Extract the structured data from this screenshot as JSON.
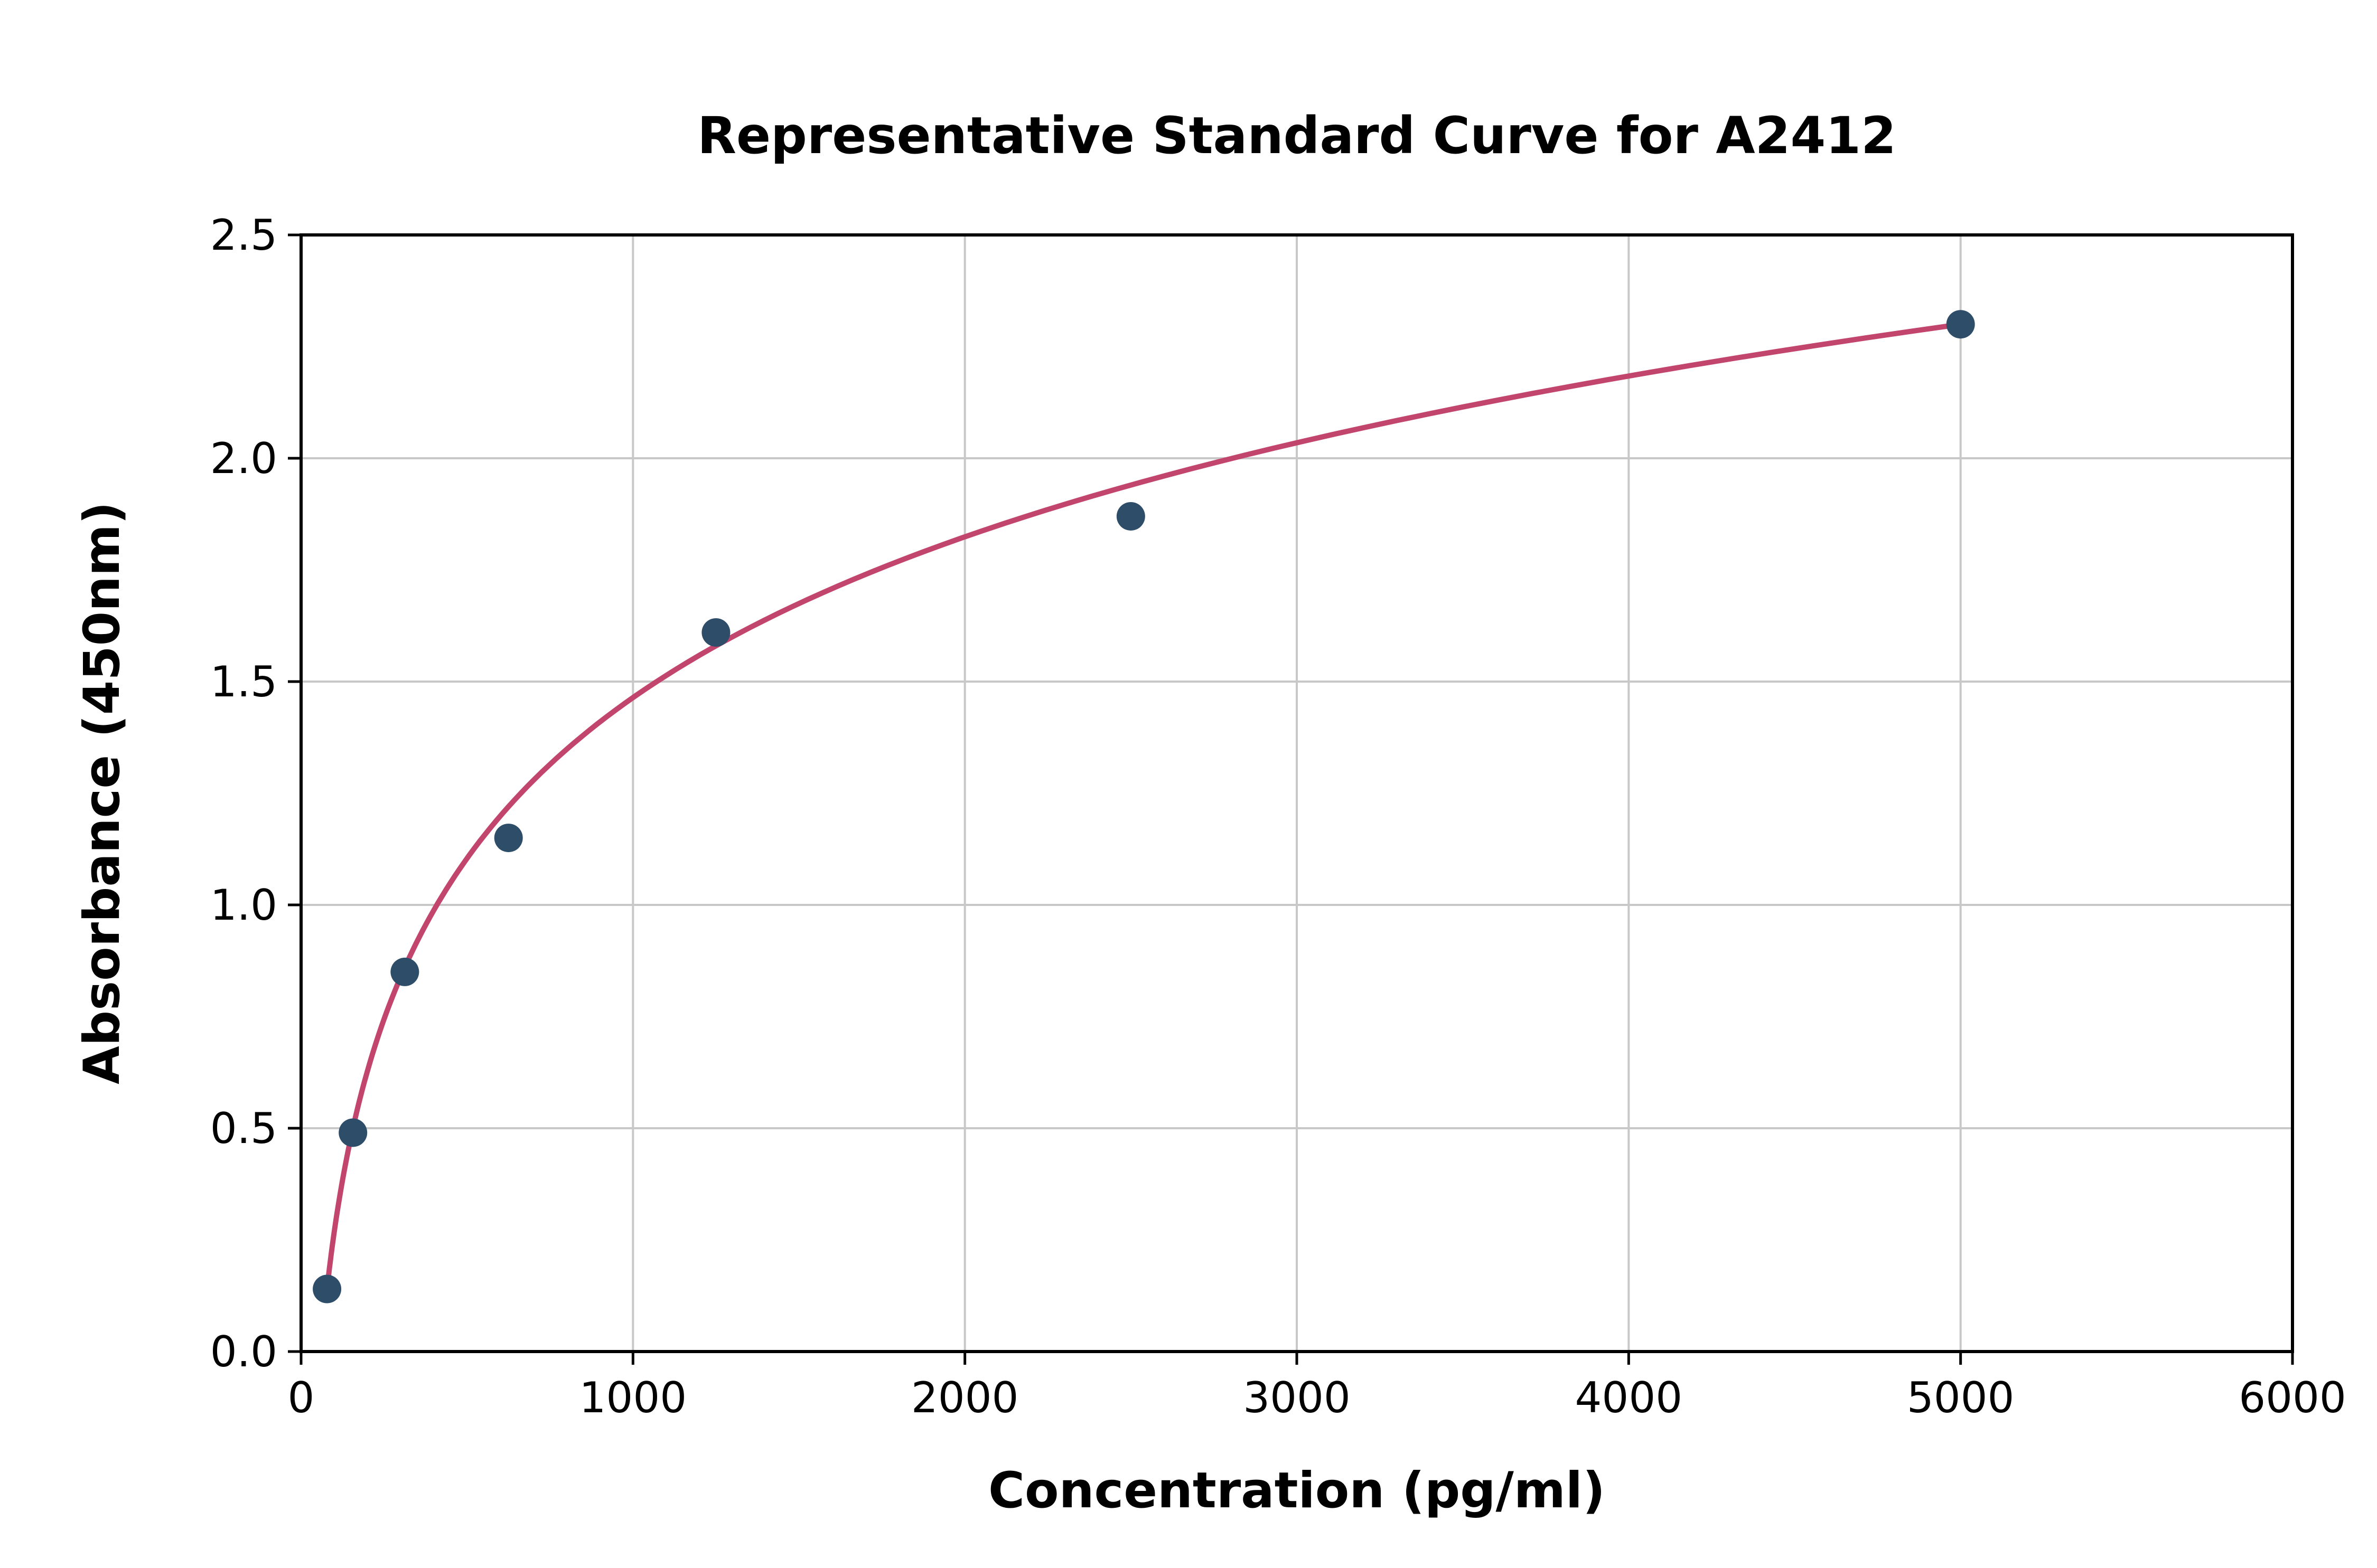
{
  "page": {
    "background": "#ffffff"
  },
  "chart_data": {
    "type": "scatter",
    "title": "Representative Standard Curve for A2412",
    "xlabel": "Concentration (pg/ml)",
    "ylabel": "Absorbance (450nm)",
    "xlim": [
      0,
      6000
    ],
    "ylim": [
      0,
      2.5
    ],
    "grid": true,
    "legend": "none",
    "x_tick_values": [
      0,
      1000,
      2000,
      3000,
      4000,
      5000,
      6000
    ],
    "x_tick_labels": [
      "0",
      "1000",
      "2000",
      "3000",
      "4000",
      "5000",
      "6000"
    ],
    "y_tick_values": [
      0.0,
      0.5,
      1.0,
      1.5,
      2.0,
      2.5
    ],
    "y_tick_labels": [
      "0.0",
      "0.5",
      "1.0",
      "1.5",
      "2.0",
      "2.5"
    ],
    "points": [
      {
        "x": 78.1,
        "y": 0.14
      },
      {
        "x": 156.3,
        "y": 0.49
      },
      {
        "x": 312.5,
        "y": 0.85
      },
      {
        "x": 625,
        "y": 1.15
      },
      {
        "x": 1250,
        "y": 1.61
      },
      {
        "x": 2500,
        "y": 1.87
      },
      {
        "x": 5000,
        "y": 2.3
      }
    ],
    "curve": {
      "description": "smooth logarithmic fit through data points from first to last point"
    },
    "colors": {
      "point": "#2e4d68",
      "curve": "#c2456e",
      "grid": "#c8c8c8",
      "axis": "#000000",
      "background": "#ffffff"
    }
  }
}
